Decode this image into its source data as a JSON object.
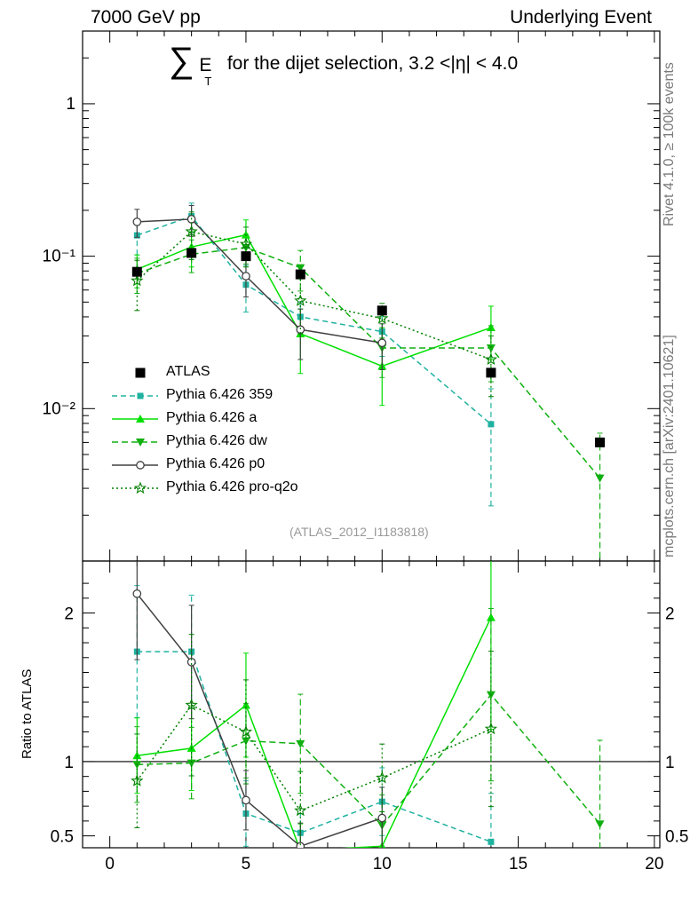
{
  "header": {
    "left": "7000 GeV pp",
    "right": "Underlying Event"
  },
  "side_text": {
    "top": "Rivet 4.1.0, ≥ 100k events",
    "bottom": "mcplots.cern.ch [arXiv:2401.10621]"
  },
  "title": {
    "symbol": "∑",
    "e": "E",
    "sub": "T",
    "rest": "for the dijet selection, 3.2 <|η| < 4.0"
  },
  "analysis_id": "(ATLAS_2012_I1183818)",
  "ratio_ylabel": "Ratio to ATLAS",
  "chart_data": {
    "type": "scatter",
    "y_scale": "log",
    "xlim": [
      -1,
      20.2
    ],
    "ylim": [
      0.001,
      3.0
    ],
    "ratio_ylim": [
      0.42,
      2.35
    ],
    "x_ticks": [
      0,
      5,
      10,
      15,
      20
    ],
    "main_y_ticks": [
      {
        "value": 1,
        "label": "1"
      },
      {
        "value": 0.1,
        "label": "10⁻¹"
      },
      {
        "value": 0.01,
        "label": "10⁻²"
      }
    ],
    "ratio_y_ticks": [
      {
        "value": 0.5,
        "label": "0.5"
      },
      {
        "value": 1,
        "label": "1"
      },
      {
        "value": 2,
        "label": "2"
      }
    ],
    "data": {
      "name": "ATLAS",
      "color": "#000000",
      "x": [
        1,
        3,
        5,
        7,
        10,
        14,
        18
      ],
      "y": [
        0.079,
        0.105,
        0.1,
        0.076,
        0.044,
        0.0172,
        0.006
      ]
    },
    "series": [
      {
        "name": "Pythia 6.426 359",
        "color": "#20b2a0",
        "marker": "square",
        "dash": "6,4",
        "x": [
          1,
          3,
          5,
          7,
          10,
          14
        ],
        "y": [
          0.137,
          0.183,
          0.065,
          0.04,
          0.032,
          0.0079
        ],
        "err": [
          0.035,
          0.04,
          0.022,
          0.01,
          0.01,
          0.0056
        ],
        "ratio": [
          1.74,
          1.74,
          0.65,
          0.52,
          0.73,
          0.46
        ]
      },
      {
        "name": "Pythia 6.426 a",
        "color": "#00e000",
        "marker": "triangle-up",
        "dash": "",
        "x": [
          1,
          3,
          5,
          7,
          10,
          14
        ],
        "y": [
          0.082,
          0.115,
          0.138,
          0.031,
          0.019,
          0.034
        ],
        "err": [
          0.02,
          0.03,
          0.035,
          0.014,
          0.0085,
          0.013
        ],
        "ratio": [
          1.04,
          1.09,
          1.38,
          0.4,
          0.43,
          1.97
        ]
      },
      {
        "name": "Pythia 6.426 dw",
        "color": "#10b010",
        "marker": "triangle-down",
        "dash": "7,4",
        "x": [
          1,
          3,
          5,
          7,
          10,
          14,
          18
        ],
        "y": [
          0.077,
          0.103,
          0.114,
          0.084,
          0.025,
          0.025,
          0.0035
        ],
        "err": [
          0.02,
          0.025,
          0.025,
          0.025,
          0.009,
          0.01,
          0.0034
        ],
        "ratio": [
          0.98,
          0.99,
          1.14,
          1.12,
          0.57,
          1.45,
          0.58
        ]
      },
      {
        "name": "Pythia 6.426 p0",
        "color": "#404040",
        "marker": "circle",
        "dash": "",
        "x": [
          1,
          3,
          5,
          7,
          10
        ],
        "y": [
          0.168,
          0.175,
          0.074,
          0.033,
          0.027
        ],
        "err": [
          0.035,
          0.04,
          0.02,
          0.012,
          0.009
        ],
        "ratio": [
          2.13,
          1.67,
          0.74,
          0.43,
          0.62
        ]
      },
      {
        "name": "Pythia 6.426 pro-q2o",
        "color": "#008000",
        "marker": "star",
        "dash": "2,3",
        "x": [
          1,
          3,
          5,
          7,
          10,
          14
        ],
        "y": [
          0.069,
          0.145,
          0.12,
          0.051,
          0.039,
          0.021
        ],
        "err": [
          0.025,
          0.05,
          0.035,
          0.02,
          0.01,
          0.009
        ],
        "ratio": [
          0.87,
          1.38,
          1.2,
          0.67,
          0.89,
          1.22
        ]
      }
    ]
  }
}
